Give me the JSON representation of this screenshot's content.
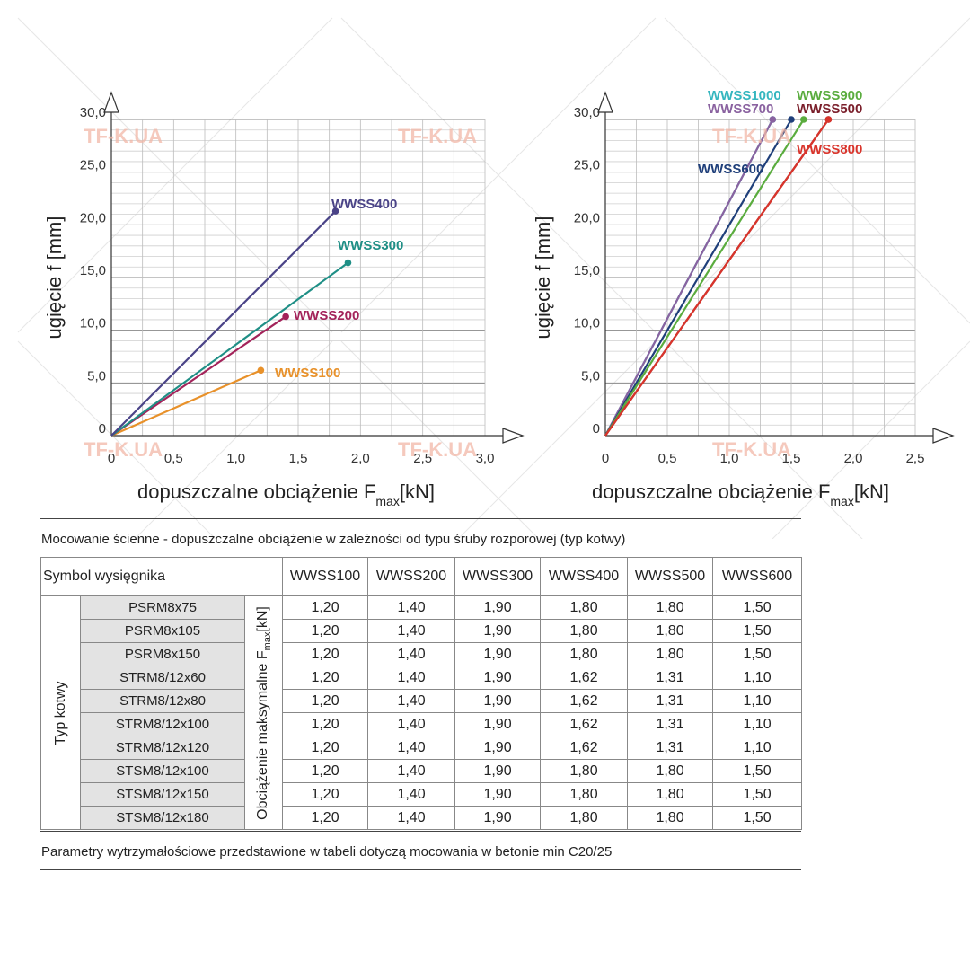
{
  "watermark": "TF-K.UA",
  "chart_data": [
    {
      "type": "line",
      "xlabel": "dopuszczalne obciążenie F",
      "xlabel_sub": "max",
      "xlabel_unit": "[kN]",
      "ylabel": "ugięcie f [mm]",
      "xlim": [
        0,
        3.0
      ],
      "ylim": [
        0,
        30.0
      ],
      "x_ticks": [
        "0",
        "0,5",
        "1,0",
        "1,5",
        "2,0",
        "2,5",
        "3,0"
      ],
      "y_ticks": [
        "0",
        "5,0",
        "10,0",
        "15,0",
        "20,0",
        "25,0",
        "30,0"
      ],
      "grid": true,
      "series": [
        {
          "name": "WWSS100",
          "color": "#e8912a",
          "points": [
            [
              0,
              0
            ],
            [
              1.2,
              6.2
            ]
          ]
        },
        {
          "name": "WWSS200",
          "color": "#a3235a",
          "points": [
            [
              0,
              0
            ],
            [
              1.4,
              11.3
            ]
          ]
        },
        {
          "name": "WWSS300",
          "color": "#1f8f86",
          "points": [
            [
              0,
              0
            ],
            [
              1.9,
              16.4
            ]
          ]
        },
        {
          "name": "WWSS400",
          "color": "#4a4387",
          "points": [
            [
              0,
              0
            ],
            [
              1.8,
              21.3
            ]
          ]
        }
      ]
    },
    {
      "type": "line",
      "xlabel": "dopuszczalne obciążenie F",
      "xlabel_sub": "max",
      "xlabel_unit": "[kN]",
      "ylabel": "ugięcie f [mm]",
      "xlim": [
        0,
        2.5
      ],
      "ylim": [
        0,
        30.0
      ],
      "x_ticks": [
        "0",
        "0,5",
        "1,0",
        "1,5",
        "2,0",
        "2,5"
      ],
      "y_ticks": [
        "0",
        "5,0",
        "10,0",
        "15,0",
        "20,0",
        "25,0",
        "30,0"
      ],
      "grid": true,
      "series": [
        {
          "name": "WWSS1000",
          "color": "#35b6bf",
          "points": [
            [
              0,
              0
            ],
            [
              1.35,
              30.0
            ]
          ]
        },
        {
          "name": "WWSS700",
          "color": "#8a62a0",
          "points": [
            [
              0,
              0
            ],
            [
              1.35,
              30.0
            ]
          ]
        },
        {
          "name": "WWSS600",
          "color": "#1f3f7a",
          "points": [
            [
              0,
              0
            ],
            [
              1.5,
              30.0
            ]
          ]
        },
        {
          "name": "WWSS900",
          "color": "#5aac3e",
          "points": [
            [
              0,
              0
            ],
            [
              1.6,
              30.0
            ]
          ]
        },
        {
          "name": "WWSS500",
          "color": "#7a1e2a",
          "points": [
            [
              0,
              0
            ],
            [
              1.8,
              30.0
            ]
          ]
        },
        {
          "name": "WWSS800",
          "color": "#d9342b",
          "points": [
            [
              0,
              0
            ],
            [
              1.8,
              30.0
            ]
          ]
        }
      ]
    }
  ],
  "table": {
    "title": "Mocowanie ścienne - dopuszczalne obciążenie w zależności od typu śruby rozporowej (typ kotwy)",
    "symbol_header": "Symbol wysięgnika",
    "columns": [
      "WWSS100",
      "WWSS200",
      "WWSS300",
      "WWSS400",
      "WWSS500",
      "WWSS600"
    ],
    "row_group_label": "Typ kotwy",
    "value_label": "Obciążenie maksymalne F",
    "value_label_sub": "max",
    "value_label_unit": "[kN]",
    "rows": [
      {
        "anchor": "PSRM8x75",
        "values": [
          "1,20",
          "1,40",
          "1,90",
          "1,80",
          "1,80",
          "1,50"
        ]
      },
      {
        "anchor": "PSRM8x105",
        "values": [
          "1,20",
          "1,40",
          "1,90",
          "1,80",
          "1,80",
          "1,50"
        ]
      },
      {
        "anchor": "PSRM8x150",
        "values": [
          "1,20",
          "1,40",
          "1,90",
          "1,80",
          "1,80",
          "1,50"
        ]
      },
      {
        "anchor": "STRM8/12x60",
        "values": [
          "1,20",
          "1,40",
          "1,90",
          "1,62",
          "1,31",
          "1,10"
        ]
      },
      {
        "anchor": "STRM8/12x80",
        "values": [
          "1,20",
          "1,40",
          "1,90",
          "1,62",
          "1,31",
          "1,10"
        ]
      },
      {
        "anchor": "STRM8/12x100",
        "values": [
          "1,20",
          "1,40",
          "1,90",
          "1,62",
          "1,31",
          "1,10"
        ]
      },
      {
        "anchor": "STRM8/12x120",
        "values": [
          "1,20",
          "1,40",
          "1,90",
          "1,62",
          "1,31",
          "1,10"
        ]
      },
      {
        "anchor": "STSM8/12x100",
        "values": [
          "1,20",
          "1,40",
          "1,90",
          "1,80",
          "1,80",
          "1,50"
        ]
      },
      {
        "anchor": "STSM8/12x150",
        "values": [
          "1,20",
          "1,40",
          "1,90",
          "1,80",
          "1,80",
          "1,50"
        ]
      },
      {
        "anchor": "STSM8/12x180",
        "values": [
          "1,20",
          "1,40",
          "1,90",
          "1,80",
          "1,80",
          "1,50"
        ]
      }
    ],
    "footnote": "Parametry wytrzymałościowe przedstawione w tabeli dotyczą mocowania w betonie min C20/25"
  }
}
